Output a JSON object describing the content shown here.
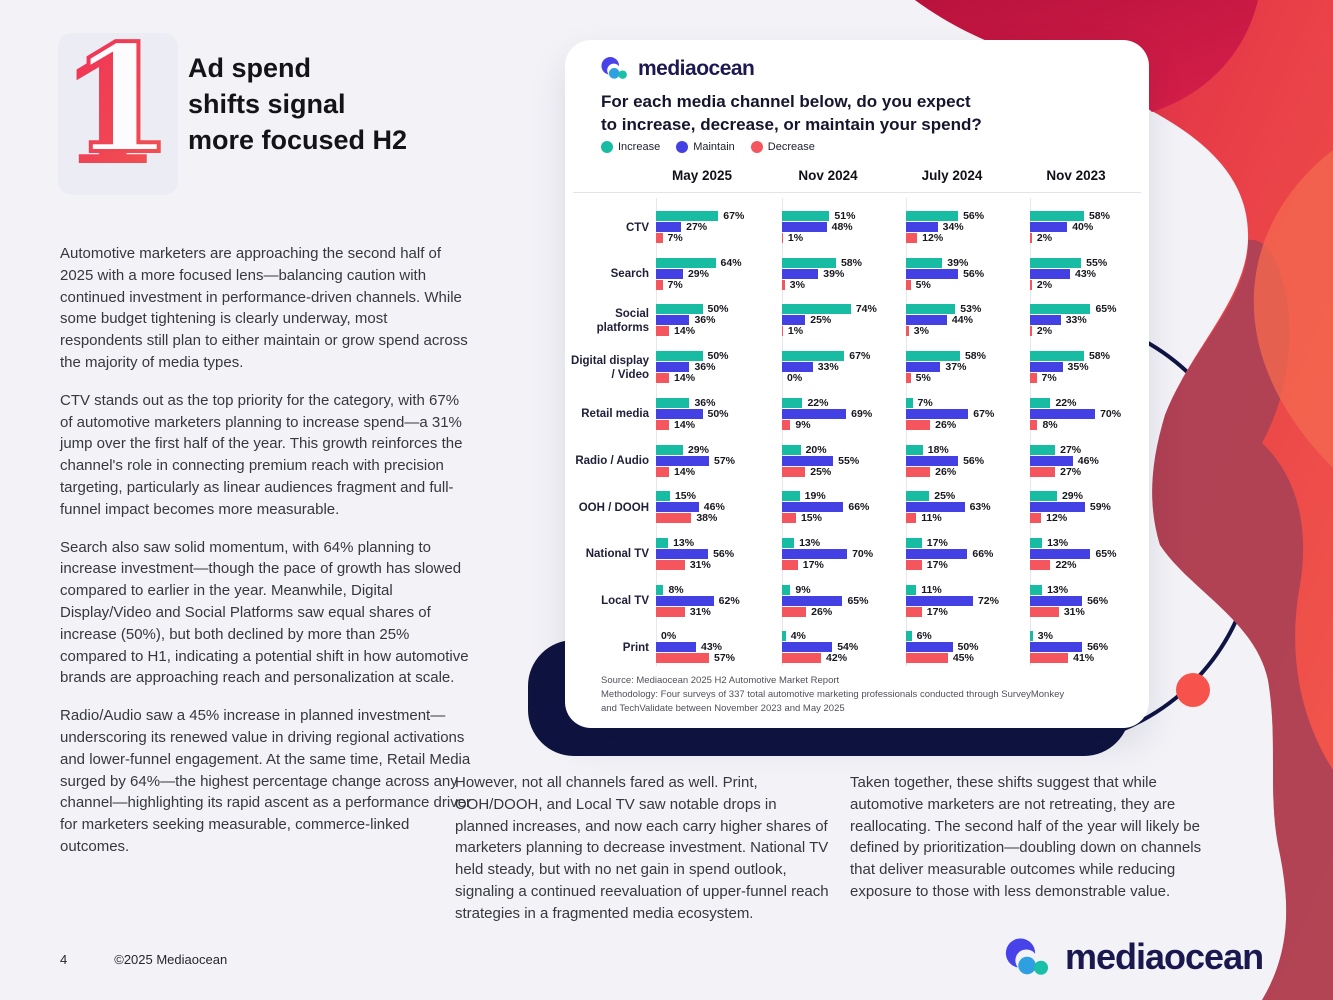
{
  "page": {
    "number_graphic": "1",
    "title": "Ad spend\nshifts signal\nmore focused H2",
    "paragraphs_left": [
      "Automotive marketers are approaching the second half of 2025 with a more focused lens—balancing caution with continued investment in performance-driven channels. While some budget tightening is clearly underway, most respondents still plan to either maintain or grow spend across the majority of media types.",
      "CTV stands out as the top priority for the category, with 67% of automotive marketers planning to increase spend—a 31% jump over the first half of the year. This growth reinforces the channel's role in connecting premium reach with precision targeting, particularly as linear audiences fragment and full-funnel impact becomes more measurable.",
      "Search also saw solid momentum, with 64% planning to increase investment—though the pace of growth has slowed compared to earlier in the year. Meanwhile, Digital Display/Video and Social Platforms saw equal shares of increase (50%), but both declined by more than 25% compared to H1, indicating a potential shift in how automotive brands are approaching reach and personalization at scale.",
      "Radio/Audio saw a 45% increase in planned investment—underscoring its renewed value in driving regional activations and lower-funnel engagement. At the same time, Retail Media surged by 64%—the highest percentage change across any channel—highlighting its rapid ascent as a performance driver for marketers seeking measurable, commerce-linked outcomes."
    ],
    "bottom_columns": [
      "However, not all channels fared as well. Print, OOH/DOOH, and Local TV saw notable drops in planned increases, and now each carry higher shares of marketers planning to decrease investment. National TV held steady, but with no net gain in spend outlook, signaling a continued reevaluation of upper-funnel reach strategies in a fragmented media ecosystem.",
      "Taken together, these shifts suggest that while automotive marketers are not retreating, they are reallocating. The second half of the year will likely be defined by prioritization—doubling down on channels that deliver measurable outcomes while reducing exposure to those with less demonstrable value."
    ],
    "footer": {
      "page_number": "4",
      "copyright": "©2025 Mediaocean"
    },
    "footer_logo_text": "mediaocean"
  },
  "card": {
    "logo_text": "mediaocean",
    "question": "For each media channel below, do you expect\nto increase, decrease, or maintain your spend?",
    "source": "Source: Mediaocean 2025 H2 Automotive Market Report\nMethodology: Four surveys of 337 total automotive marketing professionals conducted through SurveyMonkey\nand TechValidate between November 2023 and May 2025"
  },
  "chart_data": {
    "type": "bar",
    "orientation": "horizontal",
    "unit": "%",
    "xlim": [
      0,
      100
    ],
    "legend": [
      {
        "label": "Increase",
        "color": "#17BCA2"
      },
      {
        "label": "Maintain",
        "color": "#4340E4"
      },
      {
        "label": "Decrease",
        "color": "#F5555C"
      }
    ],
    "channels": [
      "CTV",
      "Search",
      "Social platforms",
      "Digital display / Video",
      "Retail media",
      "Radio / Audio",
      "OOH / DOOH",
      "National TV",
      "Local TV",
      "Print"
    ],
    "series": [
      {
        "column": "May 2025",
        "rows": [
          [
            67,
            27,
            7
          ],
          [
            64,
            29,
            7
          ],
          [
            50,
            36,
            14
          ],
          [
            50,
            36,
            14
          ],
          [
            36,
            50,
            14
          ],
          [
            29,
            57,
            14
          ],
          [
            15,
            46,
            38
          ],
          [
            13,
            56,
            31
          ],
          [
            8,
            62,
            31
          ],
          [
            0,
            43,
            57
          ]
        ]
      },
      {
        "column": "Nov 2024",
        "rows": [
          [
            51,
            48,
            1
          ],
          [
            58,
            39,
            3
          ],
          [
            74,
            25,
            1
          ],
          [
            67,
            33,
            0
          ],
          [
            22,
            69,
            9
          ],
          [
            20,
            55,
            25
          ],
          [
            19,
            66,
            15
          ],
          [
            13,
            70,
            17
          ],
          [
            9,
            65,
            26
          ],
          [
            4,
            54,
            42
          ]
        ]
      },
      {
        "column": "July 2024",
        "rows": [
          [
            56,
            34,
            12
          ],
          [
            39,
            56,
            5
          ],
          [
            53,
            44,
            3
          ],
          [
            58,
            37,
            5
          ],
          [
            7,
            67,
            26
          ],
          [
            18,
            56,
            26
          ],
          [
            25,
            63,
            11
          ],
          [
            17,
            66,
            17
          ],
          [
            11,
            72,
            17
          ],
          [
            6,
            50,
            45
          ]
        ]
      },
      {
        "column": "Nov 2023",
        "rows": [
          [
            58,
            40,
            2
          ],
          [
            55,
            43,
            2
          ],
          [
            65,
            33,
            2
          ],
          [
            58,
            35,
            7
          ],
          [
            22,
            70,
            8
          ],
          [
            27,
            46,
            27
          ],
          [
            29,
            59,
            12
          ],
          [
            13,
            65,
            22
          ],
          [
            13,
            56,
            31
          ],
          [
            3,
            56,
            41
          ]
        ]
      }
    ]
  },
  "colors": {
    "background": "#F2F2F7",
    "navy": "#0E1340",
    "accent_red": "#E8304B",
    "increase": "#17BCA2",
    "maintain": "#4340E4",
    "decrease": "#F5555C"
  }
}
